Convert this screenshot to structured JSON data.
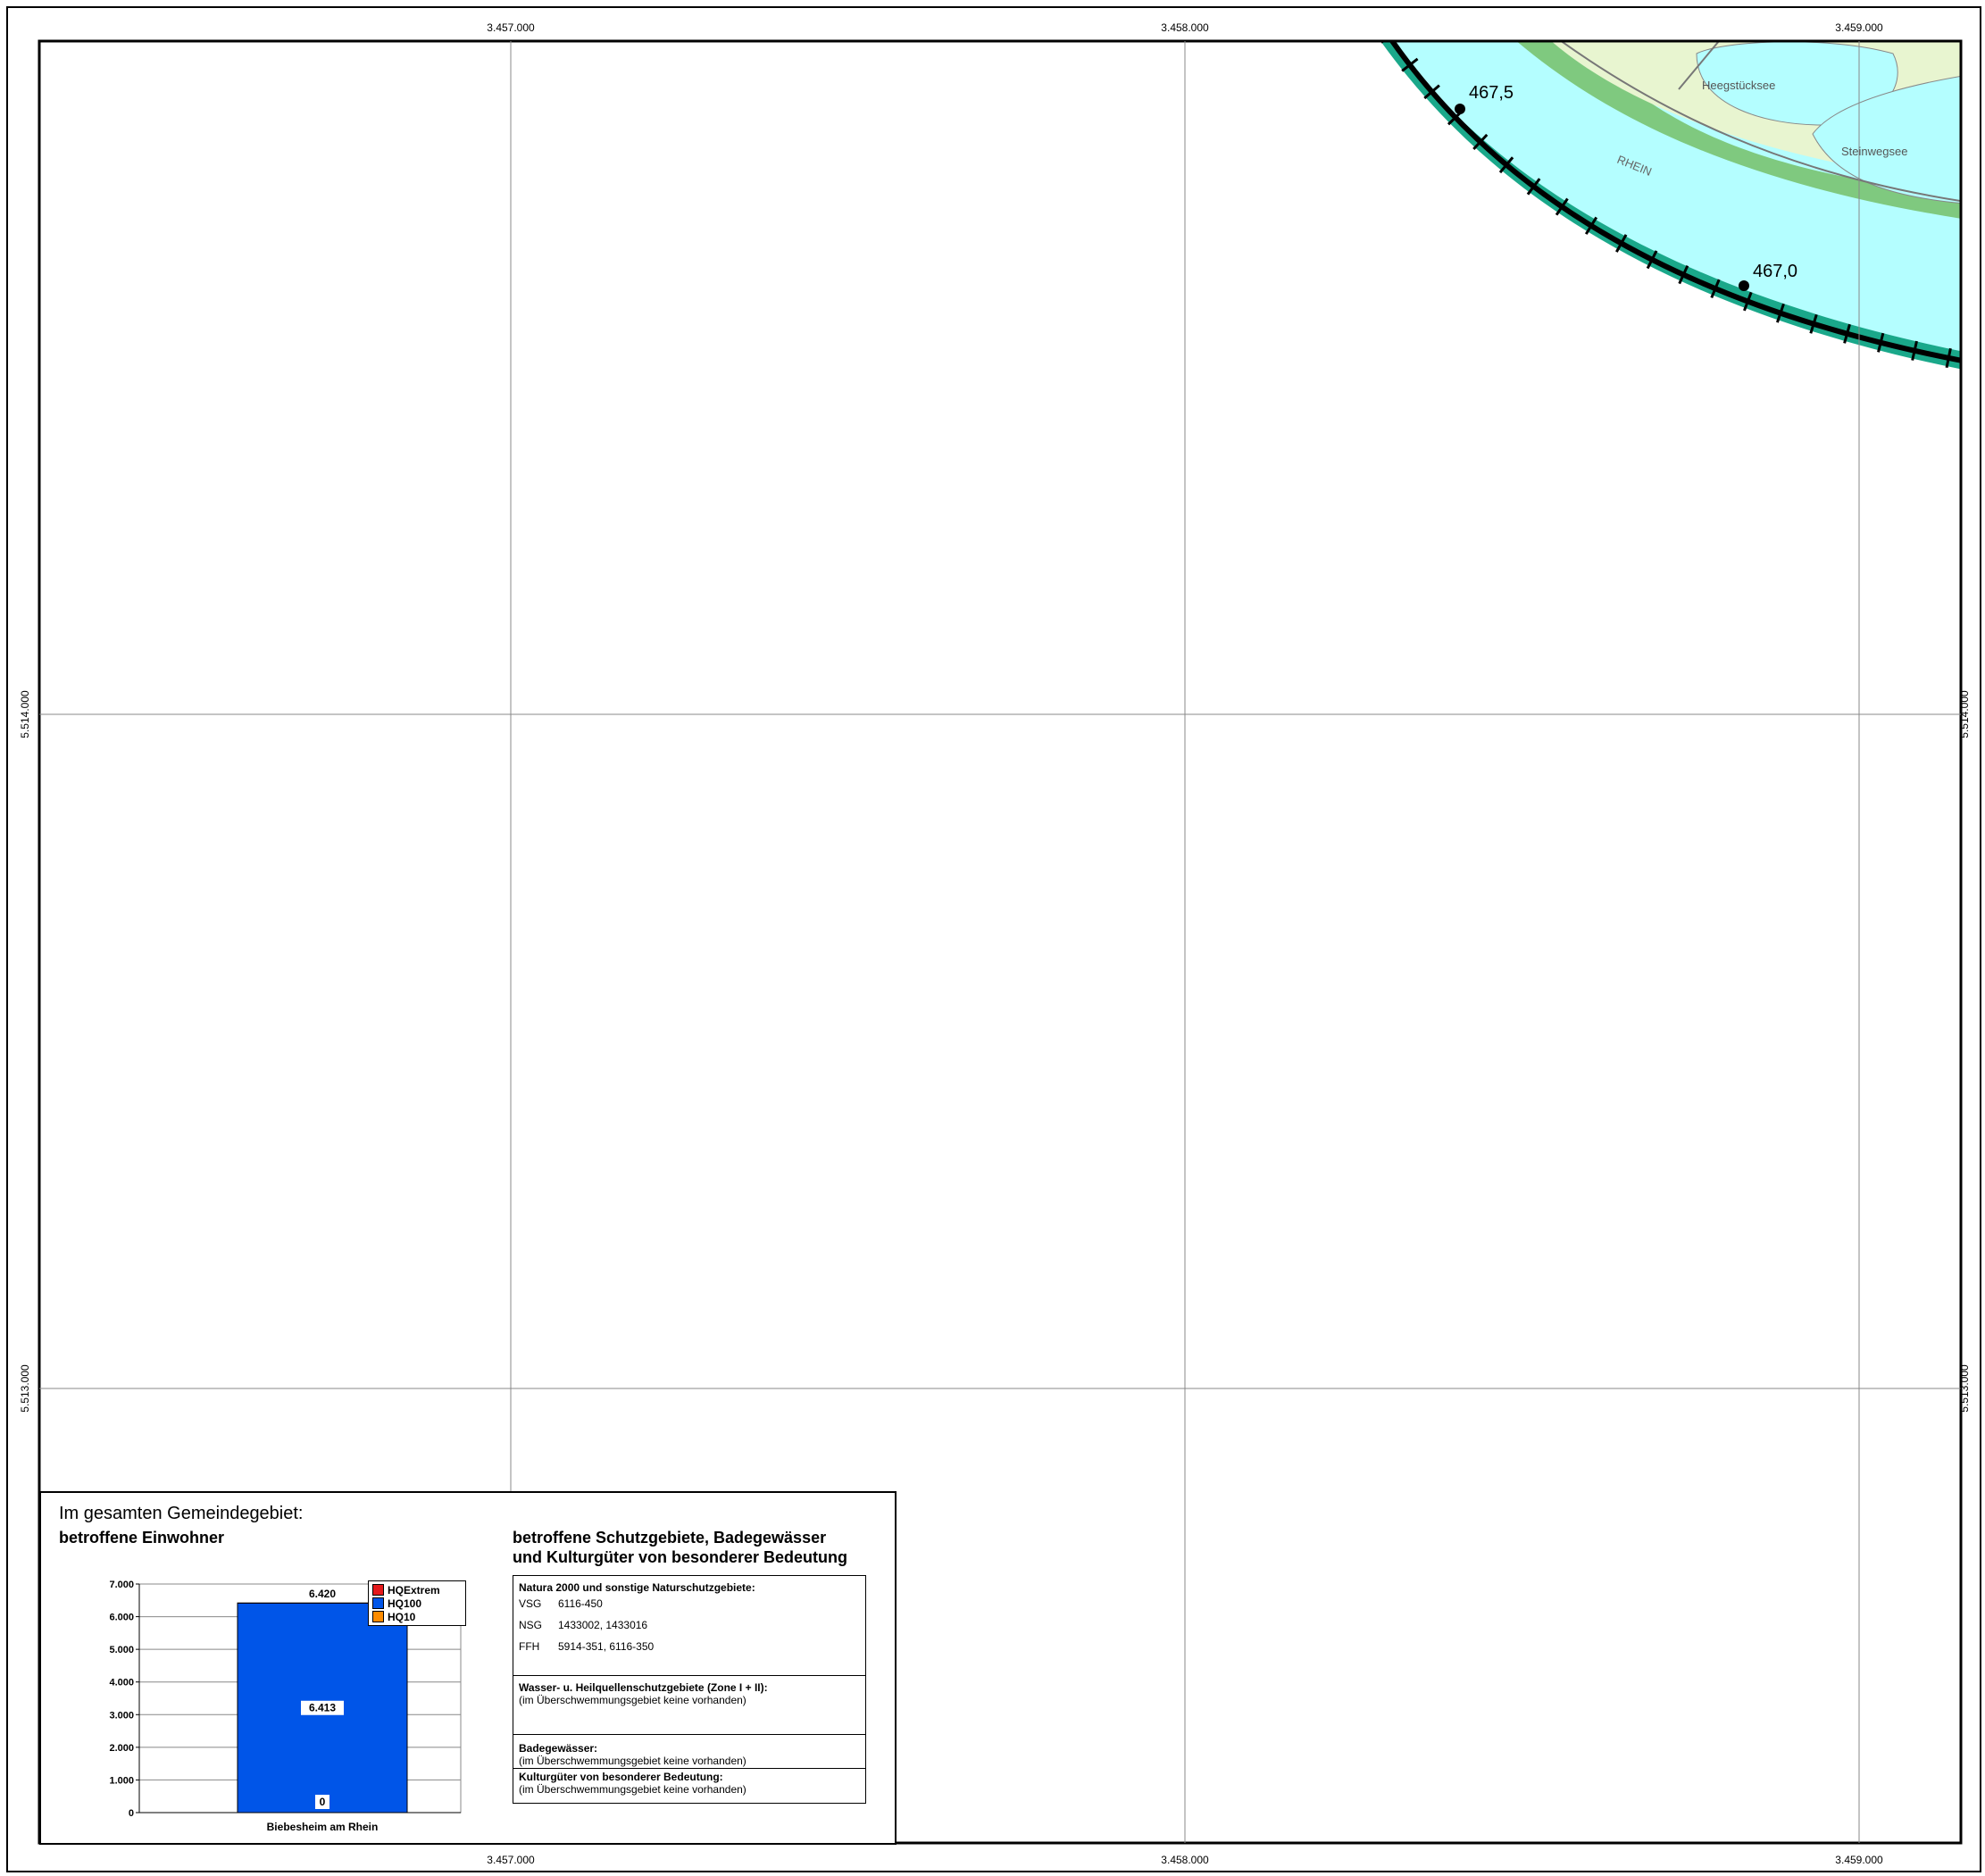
{
  "map": {
    "grid_x_labels": [
      "3.457.000",
      "3.458.000",
      "3.459.000"
    ],
    "grid_y_labels": [
      "5.514.000",
      "5.513.000"
    ],
    "river_label": "RHEIN",
    "lake_labels": [
      "Heegstücksee",
      "Steinwegsee"
    ],
    "km_markers": [
      "467,5",
      "467,0"
    ],
    "colors": {
      "water": "#b4feff",
      "meadow": "#e8f5d0",
      "vegetation": "#7fc97f",
      "flood_band": "#1aa88a",
      "grid": "#888888"
    }
  },
  "panel": {
    "caption": "Im gesamten Gemeindegebiet:",
    "chart_heading": "betroffene Einwohner",
    "protected_heading_line1": "betroffene Schutzgebiete, Badegewässer",
    "protected_heading_line2": "und Kulturgüter von besonderer Bedeutung"
  },
  "chart_data": {
    "type": "bar",
    "categories": [
      "Biebesheim am Rhein"
    ],
    "series": [
      {
        "name": "HQExtrem",
        "values": [
          6420
        ],
        "color": "#e41a1c"
      },
      {
        "name": "HQ100",
        "values": [
          6413
        ],
        "color": "#0055e8"
      },
      {
        "name": "HQ10",
        "values": [
          0
        ],
        "color": "#ff8c00"
      }
    ],
    "data_labels": [
      "6.420",
      "6.413",
      "0"
    ],
    "y_ticks": [
      "0",
      "1.000",
      "2.000",
      "3.000",
      "4.000",
      "5.000",
      "6.000",
      "7.000"
    ],
    "ylim": [
      0,
      7000
    ],
    "legend_position": "top-right",
    "grid": true
  },
  "protected_areas": {
    "natura_title": "Natura 2000 und sonstige Naturschutzgebiete:",
    "rows": [
      {
        "key": "VSG",
        "value": "6116-450"
      },
      {
        "key": "NSG",
        "value": "1433002, 1433016"
      },
      {
        "key": "FFH",
        "value": "5914-351, 6116-350"
      }
    ],
    "water_title": "Wasser- u. Heilquellenschutzgebiete (Zone I + II):",
    "water_note": "(im Überschwemmungsgebiet keine vorhanden)",
    "bathing_title": "Badegewässer:",
    "bathing_note": "(im Überschwemmungsgebiet keine vorhanden)",
    "culture_title": "Kulturgüter von besonderer Bedeutung:",
    "culture_note": "(im Überschwemmungsgebiet keine vorhanden)"
  }
}
